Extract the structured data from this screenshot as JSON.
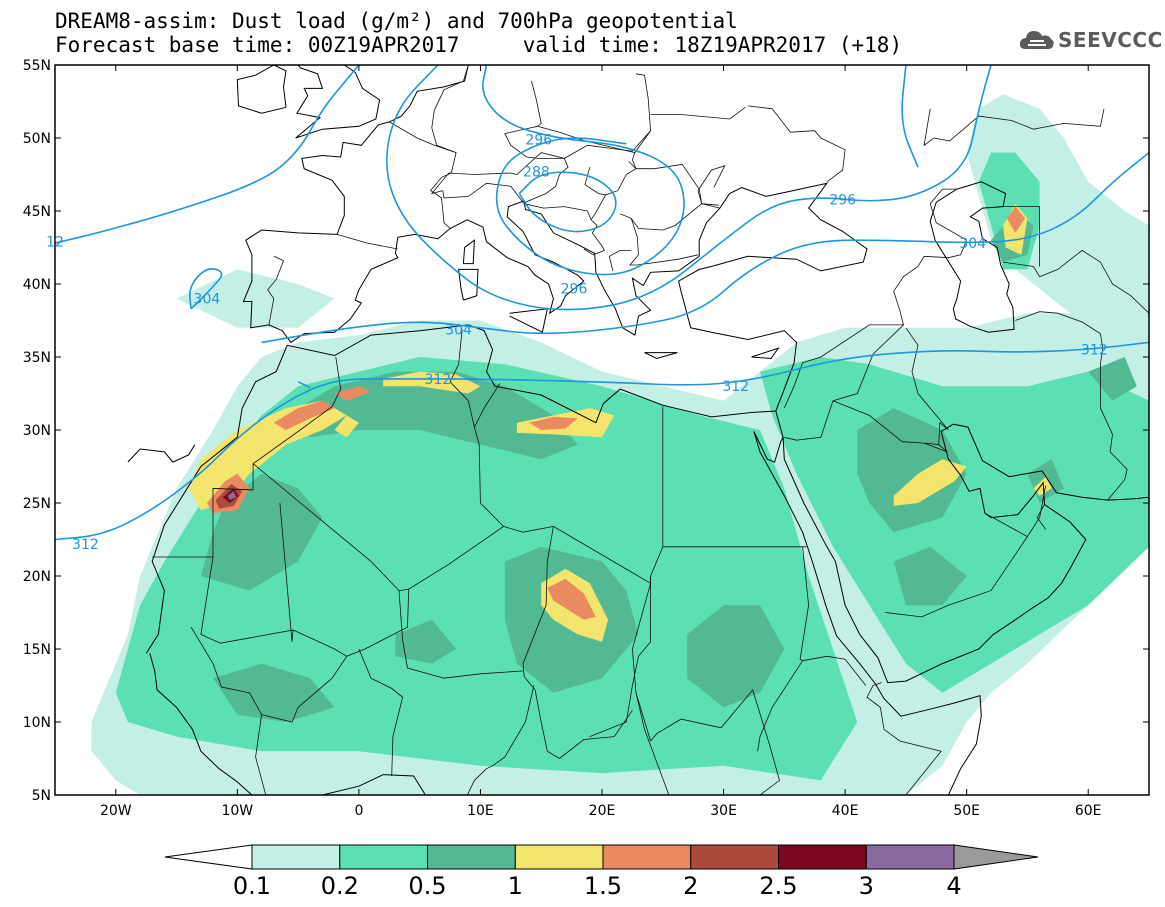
{
  "title": {
    "line1": "DREAM8-assim: Dust load (g/m²) and 700hPa geopotential",
    "line2": "Forecast base time: 00Z19APR2017     valid time: 18Z19APR2017 (+18)"
  },
  "logo": {
    "text": "SEEVCCC",
    "icon": "cloud-icon"
  },
  "map": {
    "lon_range": [
      -25,
      65
    ],
    "lat_range": [
      5,
      55
    ],
    "lat_ticks": [
      {
        "value": 55,
        "label": "55N"
      },
      {
        "value": 50,
        "label": "50N"
      },
      {
        "value": 45,
        "label": "45N"
      },
      {
        "value": 40,
        "label": "40N"
      },
      {
        "value": 35,
        "label": "35N"
      },
      {
        "value": 30,
        "label": "30N"
      },
      {
        "value": 25,
        "label": "25N"
      },
      {
        "value": 20,
        "label": "20N"
      },
      {
        "value": 15,
        "label": "15N"
      },
      {
        "value": 10,
        "label": "10N"
      },
      {
        "value": 5,
        "label": "5N"
      }
    ],
    "lon_ticks": [
      {
        "value": -20,
        "label": "20W"
      },
      {
        "value": -10,
        "label": "10W"
      },
      {
        "value": 0,
        "label": "0"
      },
      {
        "value": 10,
        "label": "10E"
      },
      {
        "value": 20,
        "label": "20E"
      },
      {
        "value": 30,
        "label": "30E"
      },
      {
        "value": 40,
        "label": "40E"
      },
      {
        "value": 50,
        "label": "50E"
      },
      {
        "value": 60,
        "label": "60E"
      }
    ],
    "contour_color": "#1e96dc",
    "contour_labels": [
      {
        "text": "296",
        "lon": 14.8,
        "lat": 49.9
      },
      {
        "text": "288",
        "lon": 14.6,
        "lat": 47.7
      },
      {
        "text": "296",
        "lon": 39.8,
        "lat": 45.8
      },
      {
        "text": "304",
        "lon": 50.5,
        "lat": 42.8
      },
      {
        "text": "12",
        "lon": -25,
        "lat": 42.9
      },
      {
        "text": "304",
        "lon": -12.5,
        "lat": 39.0
      },
      {
        "text": "296",
        "lon": 17.7,
        "lat": 39.7
      },
      {
        "text": "304",
        "lon": 8.2,
        "lat": 36.9
      },
      {
        "text": "312",
        "lon": 6.5,
        "lat": 33.5
      },
      {
        "text": "312",
        "lon": 31.0,
        "lat": 33.0
      },
      {
        "text": "312",
        "lon": 60.5,
        "lat": 35.5
      },
      {
        "text": "312",
        "lon": -22.5,
        "lat": 22.2
      }
    ]
  },
  "colorbar": {
    "colors": [
      "#c4efe6",
      "#5ce0b3",
      "#53b993",
      "#f3e46e",
      "#e98a60",
      "#ac4b3d",
      "#7d0822",
      "#8a6a9e",
      "#9a9a9a"
    ],
    "labels": [
      "0.1",
      "0.2",
      "0.5",
      "1",
      "1.5",
      "2",
      "2.5",
      "3",
      "4"
    ]
  }
}
